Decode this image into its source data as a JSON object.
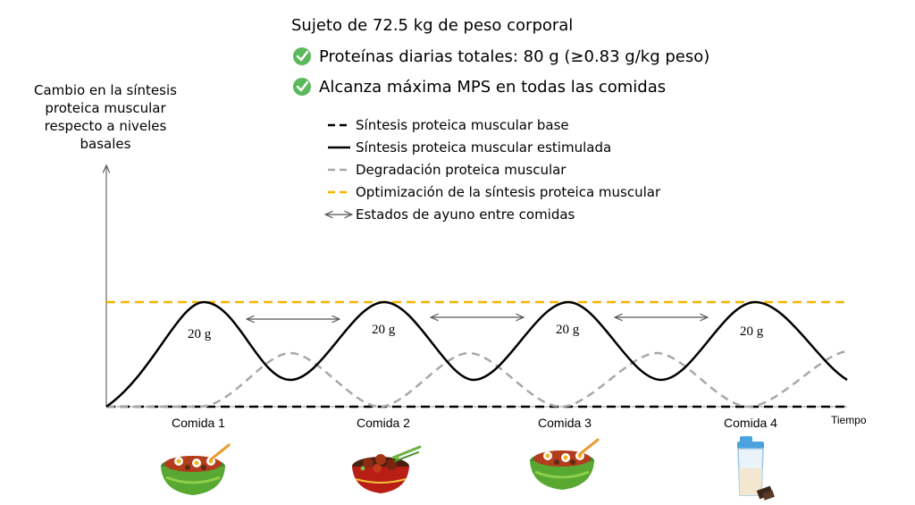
{
  "header": {
    "subject": "Sujeto de 72.5 kg de peso corporal",
    "checks": [
      "Proteínas diarias totales: 80 g (≥0.83 g/kg peso)",
      "Alcanza máxima MPS en todas las comidas"
    ]
  },
  "y_axis_label": [
    "Cambio en la síntesis",
    "proteica muscular",
    "respecto a niveles",
    "basales"
  ],
  "x_axis_label": "Tiempo",
  "legend": [
    {
      "label": "Síntesis proteica muscular base",
      "style": "black-dashed"
    },
    {
      "label": "Síntesis proteica muscular estimulada",
      "style": "black-solid"
    },
    {
      "label": "Degradación proteica muscular",
      "style": "gray-dashed"
    },
    {
      "label": "Optimización de la síntesis proteica muscular",
      "style": "orange-dashed"
    },
    {
      "label": "Estados de ayuno entre comidas",
      "style": "double-arrow"
    }
  ],
  "meals": [
    {
      "label": "Comida 1",
      "dose": "20 g",
      "food": "salad-bowl-icon"
    },
    {
      "label": "Comida 2",
      "dose": "20 g",
      "food": "meat-bowl-icon"
    },
    {
      "label": "Comida 3",
      "dose": "20 g",
      "food": "salad-bowl-icon"
    },
    {
      "label": "Comida 4",
      "dose": "20 g",
      "food": "protein-shake-icon"
    }
  ],
  "colors": {
    "optimization_line": "#f5b400",
    "degradation_line": "#a8a8a8",
    "stimulated_line": "#000000",
    "check_green": "#5cb85c"
  }
}
